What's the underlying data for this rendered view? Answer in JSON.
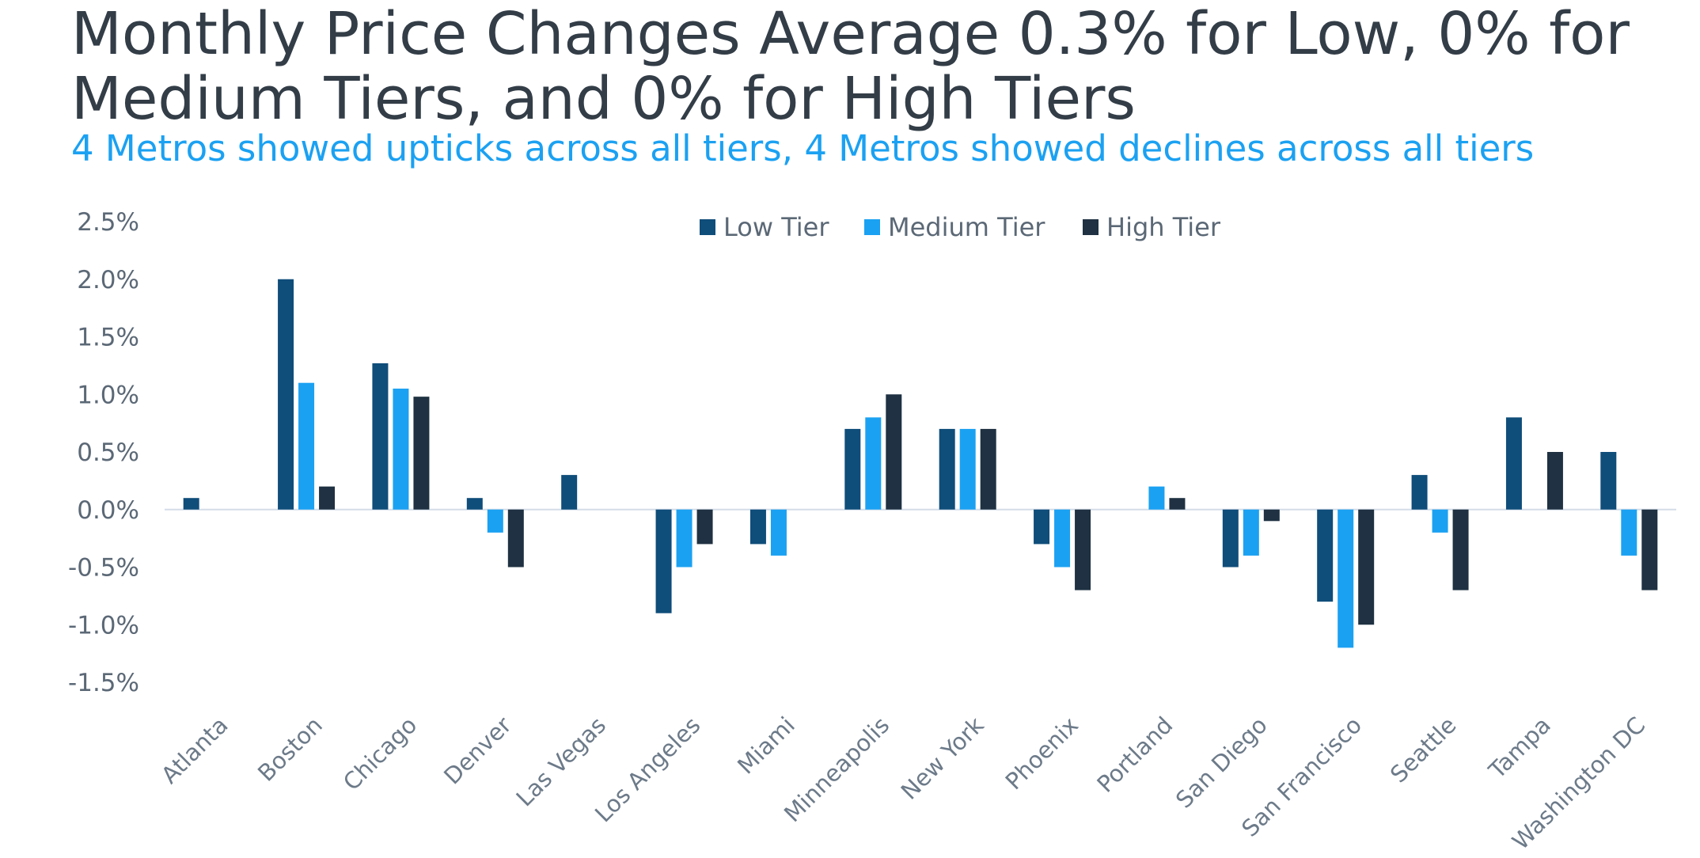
{
  "chart_data": {
    "type": "bar",
    "title": "Monthly Price Changes Average 0.3% for Low, 0% for Medium Tiers, and 0% for High Tiers",
    "subtitle": "4 Metros showed upticks across all tiers, 4 Metros showed declines across all tiers",
    "categories": [
      "Atlanta",
      "Boston",
      "Chicago",
      "Denver",
      "Las Vegas",
      "Los Angeles",
      "Miami",
      "Minneapolis",
      "New York",
      "Phoenix",
      "Portland",
      "San Diego",
      "San Francisco",
      "Seattle",
      "Tampa",
      "Washington DC"
    ],
    "series": [
      {
        "name": "Low Tier",
        "color": "#0f4d7a",
        "values": [
          0.1,
          2.0,
          1.27,
          0.1,
          0.3,
          -0.9,
          -0.3,
          0.7,
          0.7,
          -0.3,
          0.0,
          -0.5,
          -0.8,
          0.3,
          0.8,
          0.5
        ]
      },
      {
        "name": "Medium Tier",
        "color": "#1ba1f2",
        "values": [
          0.0,
          1.1,
          1.05,
          -0.2,
          0.0,
          -0.5,
          -0.4,
          0.8,
          0.7,
          -0.5,
          0.2,
          -0.4,
          -1.2,
          -0.2,
          0.0,
          -0.4
        ]
      },
      {
        "name": "High Tier",
        "color": "#1f3142",
        "values": [
          0.0,
          0.2,
          0.98,
          -0.5,
          0.0,
          -0.3,
          0.0,
          1.0,
          0.7,
          -0.7,
          0.1,
          -0.1,
          -1.0,
          -0.7,
          0.5,
          -0.7
        ]
      }
    ],
    "yticks": [
      2.5,
      2.0,
      1.5,
      1.0,
      0.5,
      0.0,
      -0.5,
      -1.0,
      -1.5
    ],
    "ytick_labels": [
      "2.5%",
      "2.0%",
      "1.5%",
      "1.0%",
      "0.5%",
      "0.0%",
      "-0.5%",
      "-1.0%",
      "-1.5%"
    ],
    "ylim": [
      -1.5,
      2.5
    ],
    "xlabel": "",
    "ylabel": "",
    "legend_position": "top-center"
  }
}
